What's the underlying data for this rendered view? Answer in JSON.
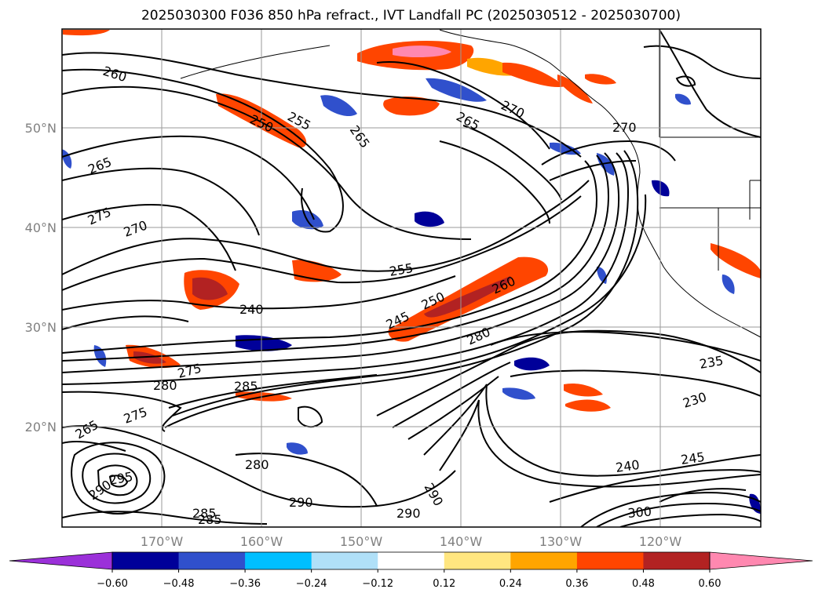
{
  "title": "2025030300 F036 850 hPa refract., IVT Landfall PC (2025030512 - 2025030700)",
  "map": {
    "lat_labels": [
      "50°N",
      "40°N",
      "30°N",
      "20°N"
    ],
    "lon_labels": [
      "170°W",
      "160°W",
      "150°W",
      "140°W",
      "130°W",
      "120°W"
    ],
    "grid": true,
    "contour_labels": [
      "260",
      "265",
      "275",
      "270",
      "250",
      "255",
      "265",
      "240",
      "245",
      "250",
      "260",
      "280",
      "280",
      "275",
      "285",
      "275",
      "265",
      "280",
      "290",
      "290",
      "285",
      "290",
      "235",
      "230",
      "240",
      "245",
      "270",
      "270",
      "265",
      "255",
      "290",
      "295",
      "300",
      "285"
    ]
  },
  "colorbar": {
    "ticks": [
      "−0.60",
      "−0.48",
      "−0.36",
      "−0.24",
      "−0.12",
      "0.12",
      "0.24",
      "0.36",
      "0.48",
      "0.60"
    ],
    "colors": {
      "under": "#9b30d9",
      "bins": [
        "#000099",
        "#3050cc",
        "#00bfff",
        "#b0e0f8",
        "#ffffff",
        "#ffe680",
        "#ffa500",
        "#ff4500",
        "#b22222"
      ],
      "over": "#ff88b0"
    }
  }
}
